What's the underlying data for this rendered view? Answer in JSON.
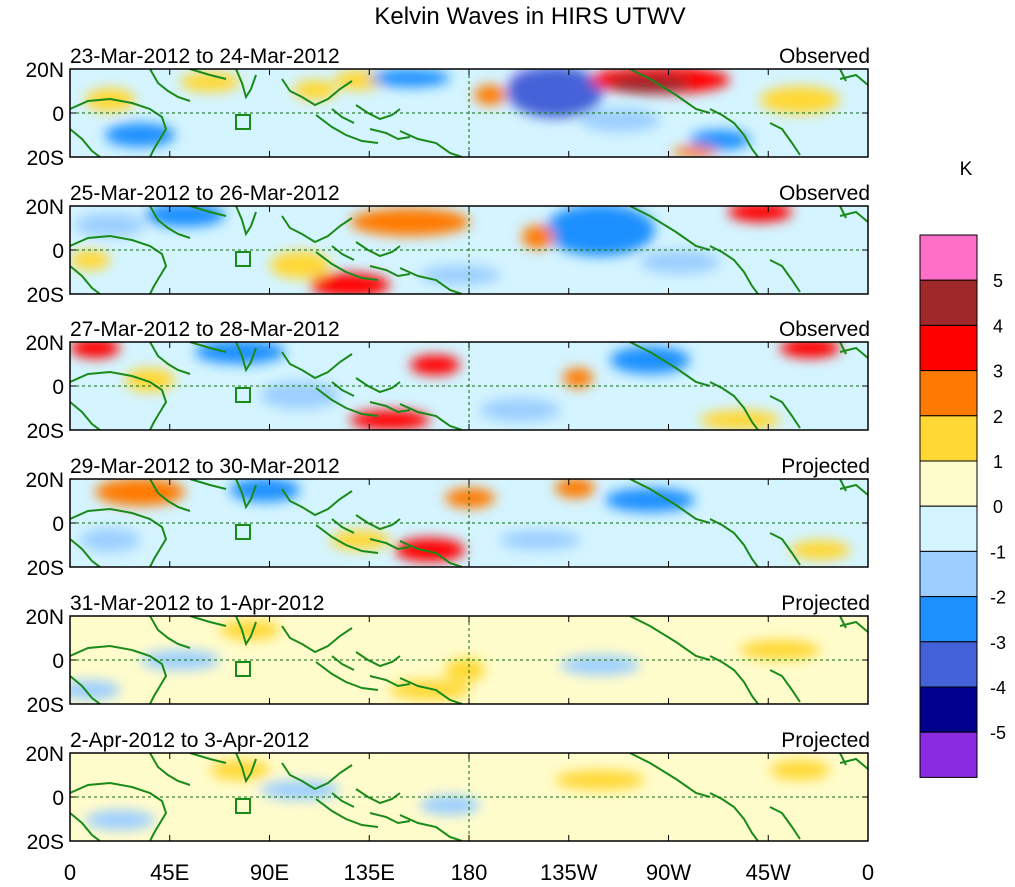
{
  "title": "Kelvin Waves in HIRS UTWV",
  "lat_labels": [
    "20N",
    "0",
    "20S"
  ],
  "lon_labels": [
    "0",
    "45E",
    "90E",
    "135E",
    "180",
    "135W",
    "90W",
    "45W",
    "0"
  ],
  "panels": [
    {
      "date": "23-Mar-2012 to 24-Mar-2012",
      "status": "Observed"
    },
    {
      "date": "25-Mar-2012 to 26-Mar-2012",
      "status": "Observed"
    },
    {
      "date": "27-Mar-2012 to 28-Mar-2012",
      "status": "Observed"
    },
    {
      "date": "29-Mar-2012 to 30-Mar-2012",
      "status": "Projected"
    },
    {
      "date": "31-Mar-2012 to 1-Apr-2012",
      "status": "Projected"
    },
    {
      "date": "2-Apr-2012 to 3-Apr-2012",
      "status": "Projected"
    }
  ],
  "colorbar": {
    "unit": "K",
    "labels": [
      "5",
      "4",
      "3",
      "2",
      "1",
      "0",
      "-1",
      "-2",
      "-3",
      "-4",
      "-5"
    ],
    "colors": [
      "#ff6ec7",
      "#a0282a",
      "#ff0000",
      "#ff7a00",
      "#ffd835",
      "#fffccc",
      "#d4f4ff",
      "#9ccfff",
      "#1e90ff",
      "#4462d8",
      "#00008c",
      "#8a2be2"
    ]
  },
  "colors": {
    "coast": "#1a8a1a",
    "frame": "#000000"
  }
}
